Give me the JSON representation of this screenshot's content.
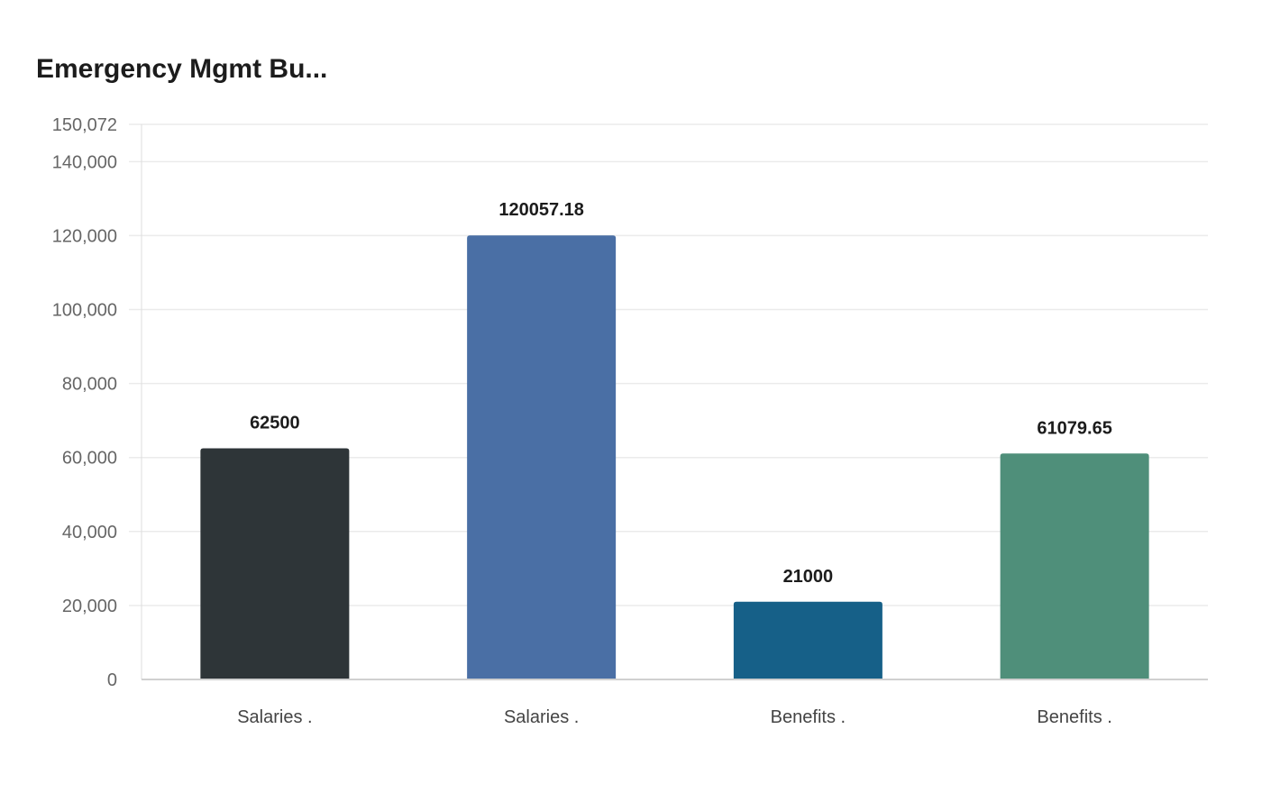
{
  "chart_data": {
    "type": "bar",
    "title": "Emergency Mgmt Bu...",
    "categories": [
      "Salaries .",
      "Salaries .",
      "Benefits .",
      "Benefits ."
    ],
    "values": [
      62500,
      120057.18,
      21000,
      61079.65
    ],
    "data_labels": [
      "62500",
      "120057.18",
      "21000",
      "61079.65"
    ],
    "colors": [
      "#2e3538",
      "#4a6fa5",
      "#166088",
      "#4f8f7a"
    ],
    "ylim": [
      0,
      150072
    ],
    "yticks": [
      0,
      20000,
      40000,
      60000,
      80000,
      100000,
      120000,
      140000,
      150072
    ],
    "ytick_labels": [
      "0",
      "20,000",
      "40,000",
      "60,000",
      "80,000",
      "100,000",
      "120,000",
      "140,000",
      "150,072"
    ],
    "xlabel": "",
    "ylabel": "",
    "grid": true
  }
}
